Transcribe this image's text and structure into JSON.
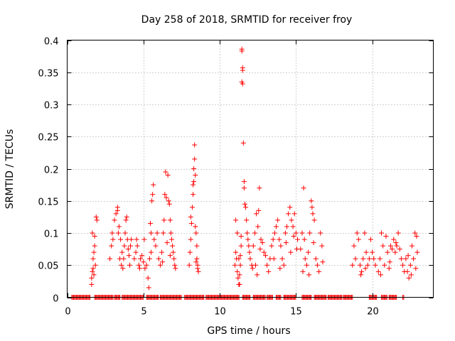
{
  "chart_data": {
    "type": "scatter",
    "title": "Day 258 of 2018, SRMTID for receiver froy",
    "xlabel": "GPS time / hours",
    "ylabel": "SRMTID / TECUs",
    "xlim": [
      0,
      24
    ],
    "ylim": [
      0,
      0.4
    ],
    "xticks": [
      0,
      5,
      10,
      15,
      20
    ],
    "xtick_labels": [
      "0",
      "5",
      "10",
      "15",
      "20"
    ],
    "yticks": [
      0,
      0.05,
      0.1,
      0.15,
      0.2,
      0.25,
      0.3,
      0.35,
      0.4
    ],
    "ytick_labels": [
      "0",
      "0.05",
      "0.1",
      "0.15",
      "0.2",
      "0.25",
      "0.3",
      "0.35",
      "0.4"
    ],
    "grid": true,
    "marker": "+",
    "color": "#ff0000",
    "series": [
      {
        "name": "SRMTID",
        "points": [
          [
            1.6,
            0.02
          ],
          [
            1.6,
            0.03
          ],
          [
            1.65,
            0.04
          ],
          [
            1.7,
            0.045
          ],
          [
            1.7,
            0.06
          ],
          [
            1.75,
            0.07
          ],
          [
            1.8,
            0.08
          ],
          [
            1.65,
            0.1
          ],
          [
            1.8,
            0.095
          ],
          [
            1.9,
            0.125
          ],
          [
            1.95,
            0.12
          ],
          [
            1.85,
            0.05
          ],
          [
            1.75,
            0.035
          ],
          [
            2.8,
            0.06
          ],
          [
            2.9,
            0.08
          ],
          [
            2.95,
            0.1
          ],
          [
            3.0,
            0.09
          ],
          [
            3.1,
            0.12
          ],
          [
            3.2,
            0.13
          ],
          [
            3.3,
            0.14
          ],
          [
            3.3,
            0.135
          ],
          [
            3.35,
            0.1
          ],
          [
            3.4,
            0.11
          ],
          [
            3.5,
            0.09
          ],
          [
            3.6,
            0.07
          ],
          [
            3.7,
            0.06
          ],
          [
            3.75,
            0.08
          ],
          [
            3.8,
            0.1
          ],
          [
            3.85,
            0.12
          ],
          [
            3.9,
            0.125
          ],
          [
            3.95,
            0.09
          ],
          [
            4.0,
            0.075
          ],
          [
            4.05,
            0.065
          ],
          [
            4.1,
            0.05
          ],
          [
            4.15,
            0.08
          ],
          [
            4.2,
            0.09
          ],
          [
            3.55,
            0.05
          ],
          [
            3.65,
            0.045
          ],
          [
            3.45,
            0.06
          ],
          [
            4.4,
            0.06
          ],
          [
            4.5,
            0.07
          ],
          [
            4.6,
            0.08
          ],
          [
            4.7,
            0.05
          ],
          [
            4.8,
            0.06
          ],
          [
            4.9,
            0.065
          ],
          [
            5.0,
            0.055
          ],
          [
            5.1,
            0.045
          ],
          [
            5.2,
            0.05
          ],
          [
            5.3,
            0.03
          ],
          [
            5.35,
            0.015
          ],
          [
            5.4,
            0.06
          ],
          [
            5.5,
            0.07
          ],
          [
            5.5,
            0.1
          ],
          [
            5.55,
            0.15
          ],
          [
            5.6,
            0.16
          ],
          [
            5.65,
            0.175
          ],
          [
            5.45,
            0.115
          ],
          [
            5.7,
            0.09
          ],
          [
            5.8,
            0.08
          ],
          [
            5.9,
            0.1
          ],
          [
            6.0,
            0.06
          ],
          [
            6.1,
            0.05
          ],
          [
            4.55,
            0.09
          ],
          [
            4.75,
            0.045
          ],
          [
            5.05,
            0.09
          ],
          [
            6.2,
            0.07
          ],
          [
            6.3,
            0.1
          ],
          [
            6.35,
            0.12
          ],
          [
            6.4,
            0.16
          ],
          [
            6.45,
            0.195
          ],
          [
            6.5,
            0.155
          ],
          [
            6.6,
            0.19
          ],
          [
            6.65,
            0.15
          ],
          [
            6.7,
            0.145
          ],
          [
            6.75,
            0.12
          ],
          [
            6.8,
            0.1
          ],
          [
            6.85,
            0.09
          ],
          [
            6.9,
            0.08
          ],
          [
            6.95,
            0.07
          ],
          [
            7.0,
            0.06
          ],
          [
            7.05,
            0.05
          ],
          [
            7.1,
            0.045
          ],
          [
            6.55,
            0.085
          ],
          [
            6.25,
            0.055
          ],
          [
            6.75,
            0.065
          ],
          [
            8.0,
            0.05
          ],
          [
            8.05,
            0.07
          ],
          [
            8.1,
            0.09
          ],
          [
            8.1,
            0.125
          ],
          [
            8.15,
            0.115
          ],
          [
            8.2,
            0.14
          ],
          [
            8.25,
            0.16
          ],
          [
            8.25,
            0.175
          ],
          [
            8.3,
            0.18
          ],
          [
            8.3,
            0.2
          ],
          [
            8.35,
            0.215
          ],
          [
            8.35,
            0.237
          ],
          [
            8.4,
            0.19
          ],
          [
            8.4,
            0.11
          ],
          [
            8.45,
            0.1
          ],
          [
            8.5,
            0.08
          ],
          [
            8.5,
            0.06
          ],
          [
            8.55,
            0.05
          ],
          [
            8.55,
            0.045
          ],
          [
            8.6,
            0.04
          ],
          [
            8.45,
            0.055
          ],
          [
            11.0,
            0.05
          ],
          [
            11.05,
            0.07
          ],
          [
            11.1,
            0.06
          ],
          [
            11.15,
            0.04
          ],
          [
            11.2,
            0.03
          ],
          [
            11.25,
            0.02
          ],
          [
            11.3,
            0.02
          ],
          [
            11.3,
            0.035
          ],
          [
            11.35,
            0.05
          ],
          [
            11.35,
            0.065
          ],
          [
            11.4,
            0.08
          ],
          [
            11.4,
            0.095
          ],
          [
            11.45,
            0.386
          ],
          [
            11.45,
            0.383
          ],
          [
            11.5,
            0.357
          ],
          [
            11.5,
            0.353
          ],
          [
            11.45,
            0.335
          ],
          [
            11.5,
            0.332
          ],
          [
            11.55,
            0.24
          ],
          [
            11.6,
            0.18
          ],
          [
            11.6,
            0.17
          ],
          [
            11.65,
            0.145
          ],
          [
            11.7,
            0.14
          ],
          [
            11.75,
            0.12
          ],
          [
            11.8,
            0.1
          ],
          [
            11.85,
            0.09
          ],
          [
            11.9,
            0.08
          ],
          [
            11.95,
            0.07
          ],
          [
            12.0,
            0.06
          ],
          [
            12.1,
            0.05
          ],
          [
            12.15,
            0.045
          ],
          [
            11.25,
            0.06
          ],
          [
            11.15,
            0.1
          ],
          [
            11.05,
            0.12
          ],
          [
            12.2,
            0.08
          ],
          [
            12.3,
            0.1
          ],
          [
            12.4,
            0.13
          ],
          [
            12.5,
            0.11
          ],
          [
            12.55,
            0.135
          ],
          [
            12.6,
            0.17
          ],
          [
            12.7,
            0.09
          ],
          [
            12.8,
            0.085
          ],
          [
            12.9,
            0.07
          ],
          [
            13.0,
            0.065
          ],
          [
            13.1,
            0.05
          ],
          [
            13.2,
            0.04
          ],
          [
            13.3,
            0.06
          ],
          [
            12.35,
            0.05
          ],
          [
            12.45,
            0.035
          ],
          [
            12.65,
            0.075
          ],
          [
            13.4,
            0.08
          ],
          [
            13.5,
            0.09
          ],
          [
            13.6,
            0.1
          ],
          [
            13.7,
            0.11
          ],
          [
            13.8,
            0.12
          ],
          [
            13.9,
            0.09
          ],
          [
            14.0,
            0.08
          ],
          [
            14.1,
            0.06
          ],
          [
            14.2,
            0.05
          ],
          [
            14.3,
            0.1
          ],
          [
            14.4,
            0.11
          ],
          [
            14.5,
            0.13
          ],
          [
            14.6,
            0.14
          ],
          [
            14.7,
            0.12
          ],
          [
            14.8,
            0.11
          ],
          [
            14.9,
            0.13
          ],
          [
            15.0,
            0.1
          ],
          [
            15.1,
            0.09
          ],
          [
            14.35,
            0.085
          ],
          [
            13.55,
            0.06
          ],
          [
            13.95,
            0.045
          ],
          [
            14.65,
            0.07
          ],
          [
            14.85,
            0.095
          ],
          [
            15.05,
            0.075
          ],
          [
            15.3,
            0.075
          ],
          [
            15.4,
            0.1
          ],
          [
            15.5,
            0.17
          ],
          [
            15.55,
            0.09
          ],
          [
            15.6,
            0.06
          ],
          [
            15.7,
            0.05
          ],
          [
            15.8,
            0.07
          ],
          [
            15.9,
            0.1
          ],
          [
            16.0,
            0.15
          ],
          [
            16.05,
            0.14
          ],
          [
            16.1,
            0.13
          ],
          [
            16.2,
            0.12
          ],
          [
            16.3,
            0.06
          ],
          [
            16.4,
            0.05
          ],
          [
            16.5,
            0.04
          ],
          [
            16.6,
            0.1
          ],
          [
            16.7,
            0.08
          ],
          [
            16.75,
            0.055
          ],
          [
            15.45,
            0.04
          ],
          [
            15.85,
            0.035
          ],
          [
            16.15,
            0.085
          ],
          [
            18.7,
            0.05
          ],
          [
            18.8,
            0.08
          ],
          [
            18.9,
            0.06
          ],
          [
            19.0,
            0.1
          ],
          [
            19.1,
            0.09
          ],
          [
            19.2,
            0.05
          ],
          [
            19.3,
            0.04
          ],
          [
            19.4,
            0.06
          ],
          [
            19.5,
            0.1
          ],
          [
            19.6,
            0.07
          ],
          [
            19.7,
            0.05
          ],
          [
            19.8,
            0.06
          ],
          [
            19.9,
            0.09
          ],
          [
            20.0,
            0.07
          ],
          [
            20.1,
            0.06
          ],
          [
            20.2,
            0.05
          ],
          [
            19.25,
            0.035
          ],
          [
            19.55,
            0.045
          ],
          [
            20.4,
            0.04
          ],
          [
            20.5,
            0.06
          ],
          [
            20.6,
            0.1
          ],
          [
            20.7,
            0.08
          ],
          [
            20.8,
            0.05
          ],
          [
            20.9,
            0.095
          ],
          [
            21.0,
            0.07
          ],
          [
            21.1,
            0.045
          ],
          [
            21.2,
            0.08
          ],
          [
            21.3,
            0.075
          ],
          [
            21.4,
            0.09
          ],
          [
            21.5,
            0.07
          ],
          [
            21.6,
            0.08
          ],
          [
            21.7,
            0.1
          ],
          [
            21.8,
            0.075
          ],
          [
            21.9,
            0.06
          ],
          [
            22.0,
            0.05
          ],
          [
            22.1,
            0.04
          ],
          [
            20.55,
            0.035
          ],
          [
            21.15,
            0.055
          ],
          [
            21.55,
            0.085
          ],
          [
            22.2,
            0.06
          ],
          [
            22.3,
            0.04
          ],
          [
            22.4,
            0.03
          ],
          [
            22.5,
            0.05
          ],
          [
            22.6,
            0.08
          ],
          [
            22.7,
            0.06
          ],
          [
            22.8,
            0.1
          ],
          [
            22.9,
            0.095
          ],
          [
            22.95,
            0.07
          ],
          [
            22.85,
            0.045
          ],
          [
            22.55,
            0.035
          ],
          [
            22.35,
            0.065
          ]
        ]
      }
    ],
    "zero_rows": [
      [
        0.3,
        1.5
      ],
      [
        1.8,
        3.0
      ],
      [
        3.1,
        3.5
      ],
      [
        3.6,
        5.0
      ],
      [
        5.2,
        6.0
      ],
      [
        6.1,
        7.5
      ],
      [
        7.7,
        9.0
      ],
      [
        9.1,
        11.3
      ],
      [
        11.5,
        12.0
      ],
      [
        12.2,
        13.0
      ],
      [
        13.1,
        13.5
      ],
      [
        13.7,
        14.0
      ],
      [
        14.2,
        15.0
      ],
      [
        15.4,
        16.0
      ],
      [
        16.2,
        17.0
      ],
      [
        17.1,
        18.0
      ],
      [
        18.1,
        18.7
      ],
      [
        19.8,
        20.3
      ],
      [
        20.6,
        21.0
      ],
      [
        21.1,
        21.6
      ],
      [
        22.0,
        22.1
      ]
    ]
  }
}
